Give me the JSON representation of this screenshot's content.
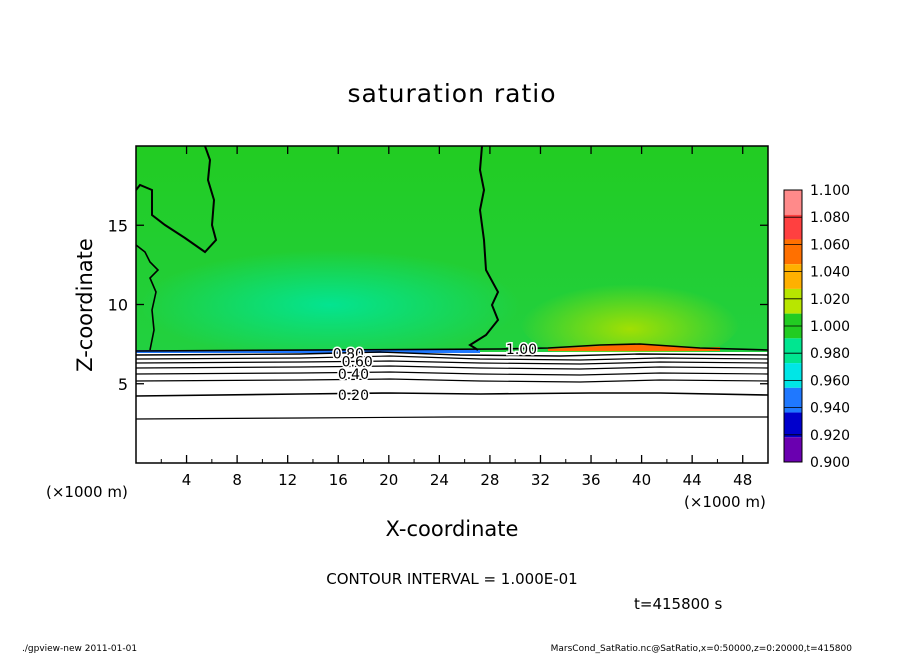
{
  "chart_data": {
    "type": "heatmap",
    "title": "saturation ratio",
    "xlabel": "X-coordinate",
    "ylabel": "Z-coordinate",
    "x_unit_left": "(×1000 m)",
    "x_unit_right": "(×1000 m)",
    "xlim": [
      0,
      50
    ],
    "ylim": [
      0,
      20
    ],
    "x_ticks": [
      4,
      8,
      12,
      16,
      20,
      24,
      28,
      32,
      36,
      40,
      44,
      48
    ],
    "y_ticks": [
      5,
      10,
      15
    ],
    "colorbar": {
      "levels": [
        "1.100",
        "1.080",
        "1.060",
        "1.040",
        "1.020",
        "1.000",
        "0.980",
        "0.960",
        "0.940",
        "0.920",
        "0.900"
      ],
      "colors": [
        "#ff8a8a",
        "#ff4040",
        "#ff7000",
        "#ffb000",
        "#b8e600",
        "#22cc22",
        "#00e690",
        "#00e6e6",
        "#1f78ff",
        "#0000cc",
        "#6a00b0"
      ]
    },
    "contour_labels": [
      {
        "text": "1.00",
        "x": 30.5,
        "z": 7.2
      },
      {
        "text": "0.80",
        "x": 16.8,
        "z": 6.9
      },
      {
        "text": "0.60",
        "x": 17.5,
        "z": 6.4
      },
      {
        "text": "0.40",
        "x": 17.2,
        "z": 5.6
      },
      {
        "text": "0.20",
        "x": 17.2,
        "z": 4.3
      }
    ],
    "contour_interval_text": "CONTOUR INTERVAL = 1.000E-01",
    "time_text": "t=415800 s",
    "footer_left": "./gpview-new   2011-01-01",
    "footer_right": "MarsCond_SatRatio.nc@SatRatio,x=0:50000,z=0:20000,t=415800"
  }
}
